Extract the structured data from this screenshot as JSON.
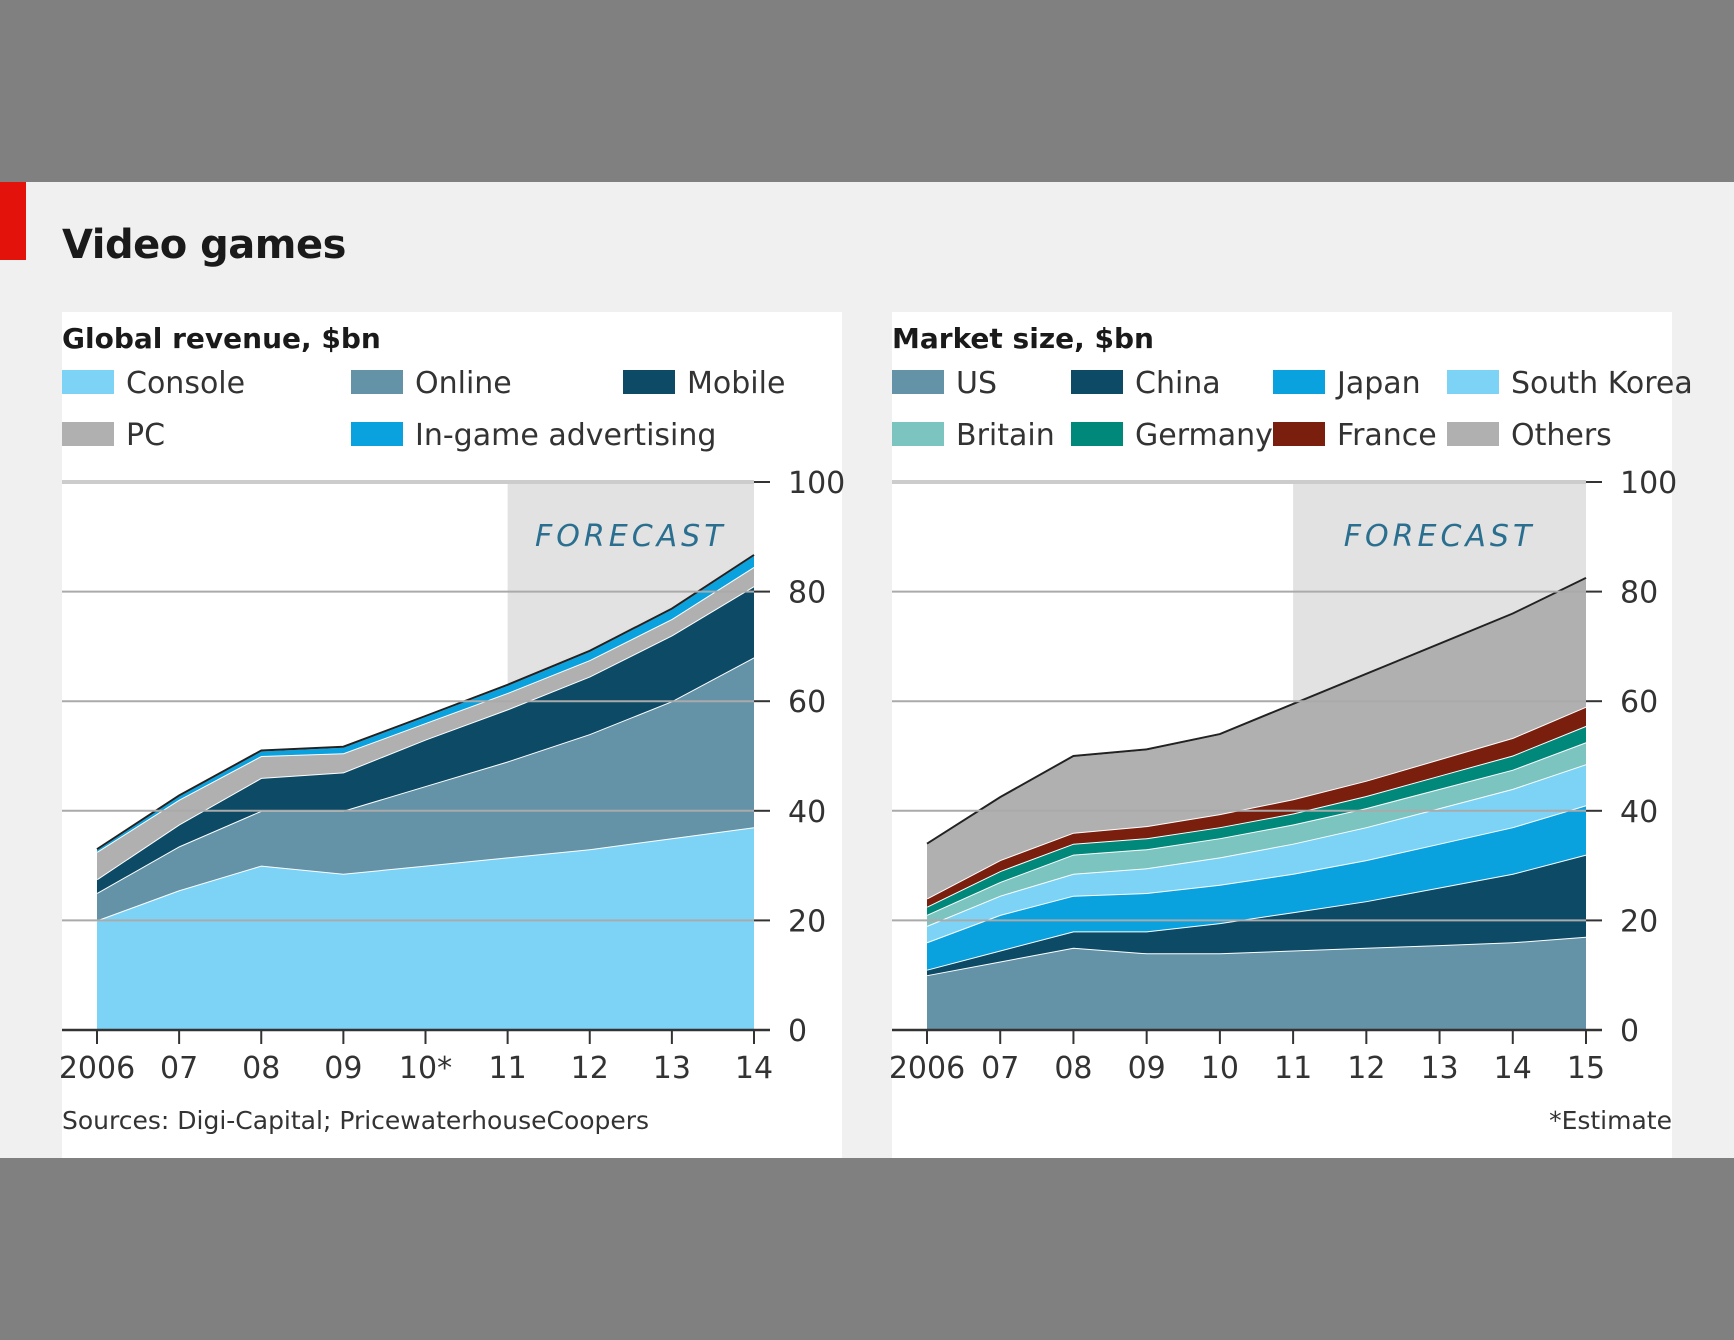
{
  "title": "Video games",
  "source": "Sources: Digi-Capital; PricewaterhouseCoopers",
  "footnote": "*Estimate",
  "colors": {
    "accent": "#e3120b"
  },
  "chart_data": [
    {
      "type": "area",
      "stacked": true,
      "title": "Global revenue, $bn",
      "forecast_label": "FORECAST",
      "forecast_from": 2011,
      "x": [
        2006,
        2007,
        2008,
        2009,
        2010,
        2011,
        2012,
        2013,
        2014
      ],
      "x_tick_labels": [
        "2006",
        "07",
        "08",
        "09",
        "10*",
        "11",
        "12",
        "13",
        "14"
      ],
      "ylim": [
        0,
        100
      ],
      "y_ticks": [
        0,
        20,
        40,
        60,
        80,
        100
      ],
      "grid": true,
      "legend": "top",
      "series": [
        {
          "name": "Console",
          "color": "#7dd3f5",
          "values": [
            20,
            25.5,
            30,
            28.5,
            30,
            31.5,
            33,
            35,
            37
          ]
        },
        {
          "name": "Online",
          "color": "#6493a8",
          "values": [
            5,
            8,
            10,
            11.5,
            14.5,
            17.5,
            21,
            25,
            31
          ]
        },
        {
          "name": "Mobile",
          "color": "#0d4a66",
          "values": [
            2.5,
            4,
            6,
            7,
            8.5,
            9.5,
            10.5,
            12,
            13
          ]
        },
        {
          "name": "PC",
          "color": "#b0b0b0",
          "values": [
            5,
            4.5,
            4,
            3.5,
            3,
            3,
            3,
            3,
            3.5
          ]
        },
        {
          "name": "In-game advertising",
          "color": "#0aa1df",
          "values": [
            0.5,
            0.8,
            1,
            1.2,
            1.3,
            1.5,
            1.7,
            1.9,
            2.2
          ]
        }
      ]
    },
    {
      "type": "area",
      "stacked": true,
      "title": "Market size, $bn",
      "forecast_label": "FORECAST",
      "forecast_from": 2011,
      "x": [
        2006,
        2007,
        2008,
        2009,
        2010,
        2011,
        2012,
        2013,
        2014,
        2015
      ],
      "x_tick_labels": [
        "2006",
        "07",
        "08",
        "09",
        "10",
        "11",
        "12",
        "13",
        "14",
        "15"
      ],
      "ylim": [
        0,
        100
      ],
      "y_ticks": [
        0,
        20,
        40,
        60,
        80,
        100
      ],
      "grid": true,
      "legend": "top",
      "series": [
        {
          "name": "US",
          "color": "#6493a8",
          "values": [
            10,
            12.5,
            15,
            14,
            14,
            14.5,
            15,
            15.5,
            16,
            17
          ]
        },
        {
          "name": "China",
          "color": "#0d4a66",
          "values": [
            1,
            2,
            3,
            4,
            5.5,
            7,
            8.5,
            10.5,
            12.5,
            15
          ]
        },
        {
          "name": "Japan",
          "color": "#0aa1df",
          "values": [
            5,
            6.5,
            6.5,
            7,
            7,
            7,
            7.5,
            8,
            8.5,
            9
          ]
        },
        {
          "name": "South Korea",
          "color": "#7dd3f5",
          "values": [
            3,
            3.5,
            4,
            4.5,
            5,
            5.5,
            6,
            6.5,
            7,
            7.5
          ]
        },
        {
          "name": "Britain",
          "color": "#7cc4c0",
          "values": [
            2,
            2.5,
            3.5,
            3.5,
            3.5,
            3.5,
            3.5,
            3.5,
            3.5,
            4
          ]
        },
        {
          "name": "Germany",
          "color": "#00897b",
          "values": [
            1.5,
            2,
            2,
            2,
            2,
            2,
            2.2,
            2.4,
            2.6,
            3
          ]
        },
        {
          "name": "France",
          "color": "#7a1f0e",
          "values": [
            1.5,
            2,
            2,
            2.2,
            2.4,
            2.6,
            2.8,
            3,
            3.2,
            3.5
          ]
        },
        {
          "name": "Others",
          "color": "#b0b0b0",
          "values": [
            10,
            11.5,
            14,
            14,
            14.6,
            17.4,
            19.5,
            21.1,
            22.7,
            23.5
          ]
        }
      ]
    }
  ]
}
